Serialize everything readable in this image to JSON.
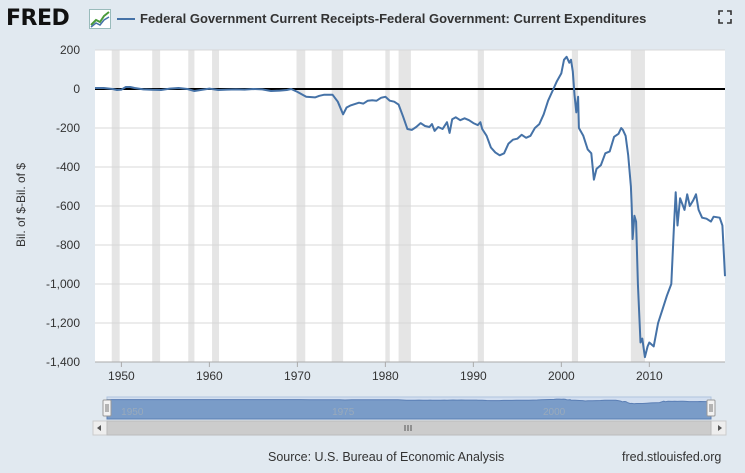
{
  "brand": {
    "logo": "FRED"
  },
  "legend": {
    "label": "Federal Government Current Receipts-Federal Government: Current Expenditures"
  },
  "footer": {
    "source": "Source: U.S. Bureau of Economic Analysis",
    "link": "fred.stlouisfed.org"
  },
  "icons": {
    "logo_graph": "trend-graph-icon",
    "fullscreen": "fullscreen-icon"
  },
  "colors": {
    "series": "#4572a7",
    "recession": "#e5e5e5",
    "background": "#e1e9f0",
    "plot": "#ffffff",
    "zero_line": "#000000",
    "navigator_fill": "#7a9cc8"
  },
  "chart_data": {
    "type": "line",
    "title": "",
    "xlabel": "",
    "ylabel": "Bil. of $-Bil. of $",
    "xlim": [
      1947,
      2018.6
    ],
    "ylim": [
      -1400,
      200
    ],
    "x_ticks": [
      1950,
      1960,
      1970,
      1980,
      1990,
      2000,
      2010
    ],
    "y_ticks": [
      200,
      0,
      -200,
      -400,
      -600,
      -800,
      -1000,
      -1200,
      -1400
    ],
    "y_tick_labels": [
      "200",
      "0",
      "-200",
      "-400",
      "-600",
      "-800",
      "-1,000",
      "-1,200",
      "-1,400"
    ],
    "grid": "horizontal",
    "recessions": [
      [
        1948.9,
        1949.8
      ],
      [
        1953.5,
        1954.4
      ],
      [
        1957.6,
        1958.3
      ],
      [
        1960.3,
        1961.1
      ],
      [
        1969.9,
        1970.9
      ],
      [
        1973.9,
        1975.2
      ],
      [
        1980.0,
        1980.5
      ],
      [
        1981.5,
        1982.9
      ],
      [
        1990.5,
        1991.2
      ],
      [
        2001.2,
        2001.9
      ],
      [
        2007.9,
        2009.5
      ]
    ],
    "navigator_ticks": [
      "1950",
      "1975",
      "2000"
    ],
    "series": [
      {
        "name": "Federal Government Current Receipts-Federal Government: Current Expenditures",
        "points": [
          [
            1947.0,
            5
          ],
          [
            1948.0,
            5
          ],
          [
            1949.0,
            0
          ],
          [
            1949.5,
            -5
          ],
          [
            1950.0,
            -3
          ],
          [
            1950.5,
            10
          ],
          [
            1951.0,
            10
          ],
          [
            1951.5,
            5
          ],
          [
            1952.5,
            -2
          ],
          [
            1953.5,
            -4
          ],
          [
            1954.5,
            -5
          ],
          [
            1955.5,
            2
          ],
          [
            1956.5,
            5
          ],
          [
            1957.5,
            0
          ],
          [
            1958.3,
            -10
          ],
          [
            1959.0,
            -5
          ],
          [
            1960.0,
            2
          ],
          [
            1961.0,
            -5
          ],
          [
            1962.0,
            -3
          ],
          [
            1963.0,
            -2
          ],
          [
            1964.0,
            -3
          ],
          [
            1965.0,
            0
          ],
          [
            1966.0,
            -2
          ],
          [
            1967.0,
            -10
          ],
          [
            1968.0,
            -8
          ],
          [
            1968.8,
            -5
          ],
          [
            1969.3,
            0
          ],
          [
            1970.0,
            -15
          ],
          [
            1971.0,
            -40
          ],
          [
            1972.0,
            -43
          ],
          [
            1972.5,
            -35
          ],
          [
            1973.0,
            -30
          ],
          [
            1974.0,
            -30
          ],
          [
            1974.6,
            -65
          ],
          [
            1975.2,
            -130
          ],
          [
            1975.6,
            -95
          ],
          [
            1976.0,
            -85
          ],
          [
            1977.0,
            -70
          ],
          [
            1977.5,
            -75
          ],
          [
            1978.0,
            -60
          ],
          [
            1978.5,
            -58
          ],
          [
            1979.0,
            -60
          ],
          [
            1979.5,
            -45
          ],
          [
            1980.0,
            -40
          ],
          [
            1980.5,
            -60
          ],
          [
            1981.0,
            -65
          ],
          [
            1981.5,
            -80
          ],
          [
            1982.0,
            -140
          ],
          [
            1982.5,
            -205
          ],
          [
            1983.0,
            -210
          ],
          [
            1983.5,
            -195
          ],
          [
            1984.0,
            -175
          ],
          [
            1984.5,
            -190
          ],
          [
            1985.0,
            -195
          ],
          [
            1985.3,
            -180
          ],
          [
            1985.6,
            -215
          ],
          [
            1986.0,
            -195
          ],
          [
            1986.5,
            -205
          ],
          [
            1987.0,
            -170
          ],
          [
            1987.3,
            -225
          ],
          [
            1987.6,
            -155
          ],
          [
            1988.0,
            -145
          ],
          [
            1988.5,
            -160
          ],
          [
            1989.0,
            -150
          ],
          [
            1989.5,
            -160
          ],
          [
            1990.0,
            -175
          ],
          [
            1990.5,
            -185
          ],
          [
            1990.8,
            -170
          ],
          [
            1991.0,
            -205
          ],
          [
            1991.5,
            -240
          ],
          [
            1992.0,
            -300
          ],
          [
            1992.5,
            -325
          ],
          [
            1993.0,
            -340
          ],
          [
            1993.5,
            -330
          ],
          [
            1994.0,
            -280
          ],
          [
            1994.5,
            -260
          ],
          [
            1995.0,
            -255
          ],
          [
            1995.5,
            -235
          ],
          [
            1996.0,
            -250
          ],
          [
            1996.5,
            -240
          ],
          [
            1997.0,
            -200
          ],
          [
            1997.5,
            -180
          ],
          [
            1998.0,
            -130
          ],
          [
            1998.5,
            -60
          ],
          [
            1999.0,
            -10
          ],
          [
            1999.5,
            40
          ],
          [
            2000.0,
            80
          ],
          [
            2000.3,
            150
          ],
          [
            2000.6,
            165
          ],
          [
            2000.9,
            135
          ],
          [
            2001.1,
            150
          ],
          [
            2001.3,
            90
          ],
          [
            2001.5,
            -30
          ],
          [
            2001.7,
            -120
          ],
          [
            2001.9,
            -40
          ],
          [
            2002.0,
            -200
          ],
          [
            2002.5,
            -240
          ],
          [
            2003.0,
            -310
          ],
          [
            2003.4,
            -330
          ],
          [
            2003.7,
            -465
          ],
          [
            2004.0,
            -410
          ],
          [
            2004.5,
            -390
          ],
          [
            2005.0,
            -330
          ],
          [
            2005.5,
            -320
          ],
          [
            2006.0,
            -245
          ],
          [
            2006.5,
            -230
          ],
          [
            2006.8,
            -200
          ],
          [
            2007.0,
            -210
          ],
          [
            2007.3,
            -240
          ],
          [
            2007.6,
            -340
          ],
          [
            2007.9,
            -500
          ],
          [
            2008.0,
            -600
          ],
          [
            2008.1,
            -770
          ],
          [
            2008.3,
            -650
          ],
          [
            2008.5,
            -680
          ],
          [
            2008.7,
            -1000
          ],
          [
            2009.0,
            -1300
          ],
          [
            2009.2,
            -1280
          ],
          [
            2009.5,
            -1375
          ],
          [
            2009.8,
            -1320
          ],
          [
            2010.0,
            -1300
          ],
          [
            2010.5,
            -1320
          ],
          [
            2011.0,
            -1200
          ],
          [
            2011.5,
            -1130
          ],
          [
            2012.0,
            -1060
          ],
          [
            2012.5,
            -1000
          ],
          [
            2012.8,
            -700
          ],
          [
            2013.0,
            -530
          ],
          [
            2013.2,
            -700
          ],
          [
            2013.5,
            -560
          ],
          [
            2014.0,
            -620
          ],
          [
            2014.3,
            -540
          ],
          [
            2014.6,
            -600
          ],
          [
            2015.0,
            -570
          ],
          [
            2015.3,
            -540
          ],
          [
            2015.6,
            -620
          ],
          [
            2016.0,
            -660
          ],
          [
            2016.5,
            -665
          ],
          [
            2017.0,
            -680
          ],
          [
            2017.3,
            -655
          ],
          [
            2018.0,
            -660
          ],
          [
            2018.3,
            -700
          ],
          [
            2018.6,
            -960
          ]
        ]
      }
    ]
  }
}
